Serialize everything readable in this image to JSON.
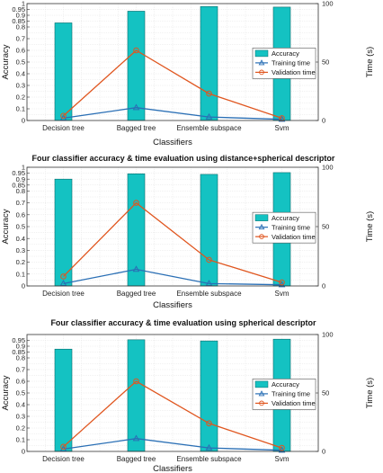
{
  "chart_data": [
    {
      "type": "bar",
      "title": "",
      "xlabel": "Classifiers",
      "ylabel": "Accuracy",
      "ylabel_right": "Time (s)",
      "categories": [
        "Decision tree",
        "Bagged tree",
        "Ensemble subspace",
        "Svm"
      ],
      "ylim": [
        0,
        1
      ],
      "ylim_right": [
        0,
        100
      ],
      "y_ticks": [
        "0",
        "0.1",
        "0.2",
        "0.3",
        "0.4",
        "0.5",
        "0.6",
        "0.7",
        "0.8",
        "0.85",
        "0.9",
        "0.95",
        "1"
      ],
      "y_ticks_right": [
        "0",
        "50",
        "100"
      ],
      "grid": true,
      "legend_position": "right",
      "series": [
        {
          "name": "Accuracy",
          "kind": "bar",
          "axis": "left",
          "color": "#14c2c2",
          "values": [
            0.835,
            0.935,
            0.975,
            0.97
          ]
        },
        {
          "name": "Training time",
          "kind": "line",
          "axis": "right",
          "color": "#2a6fb5",
          "marker": "triangle",
          "values": [
            2,
            11,
            3,
            1
          ]
        },
        {
          "name": "Validation time",
          "kind": "line",
          "axis": "right",
          "color": "#e0561f",
          "marker": "circle",
          "values": [
            4,
            60,
            23,
            2
          ]
        }
      ]
    },
    {
      "type": "bar",
      "title": "Four classifier accuracy & time evaluation using distance+spherical descriptor",
      "xlabel": "Classifiers",
      "ylabel": "Accuracy",
      "ylabel_right": "Time (s)",
      "categories": [
        "Decision tree",
        "Bagged tree",
        "Ensemble subspace",
        "Svm"
      ],
      "ylim": [
        0,
        1
      ],
      "ylim_right": [
        0,
        100
      ],
      "y_ticks": [
        "0",
        "0.1",
        "0.2",
        "0.3",
        "0.4",
        "0.5",
        "0.6",
        "0.7",
        "0.8",
        "0.85",
        "0.9",
        "0.95",
        "1"
      ],
      "y_ticks_right": [
        "0",
        "50",
        "100"
      ],
      "grid": true,
      "legend_position": "right",
      "series": [
        {
          "name": "Accuracy",
          "kind": "bar",
          "axis": "left",
          "color": "#14c2c2",
          "values": [
            0.9,
            0.945,
            0.94,
            0.955
          ]
        },
        {
          "name": "Training time",
          "kind": "line",
          "axis": "right",
          "color": "#2a6fb5",
          "marker": "triangle",
          "values": [
            2,
            14,
            2,
            1
          ]
        },
        {
          "name": "Validation time",
          "kind": "line",
          "axis": "right",
          "color": "#e0561f",
          "marker": "circle",
          "values": [
            8,
            70,
            22,
            3
          ]
        }
      ]
    },
    {
      "type": "bar",
      "title": "Four classifier accuracy & time evaluation using spherical descriptor",
      "xlabel": "Classifiers",
      "ylabel": "Accuracy",
      "ylabel_right": "Time (s)",
      "categories": [
        "Decision tree",
        "Bagged tree",
        "Ensemble subspace",
        "Svm"
      ],
      "ylim": [
        0,
        1
      ],
      "ylim_right": [
        0,
        100
      ],
      "y_ticks": [
        "0",
        "0.1",
        "0.2",
        "0.3",
        "0.4",
        "0.5",
        "0.6",
        "0.7",
        "0.8",
        "0.85",
        "0.9",
        "0.95"
      ],
      "y_ticks_right": [
        "0",
        "50",
        "100"
      ],
      "grid": true,
      "legend_position": "right",
      "series": [
        {
          "name": "Accuracy",
          "kind": "bar",
          "axis": "left",
          "color": "#14c2c2",
          "values": [
            0.875,
            0.955,
            0.945,
            0.96
          ]
        },
        {
          "name": "Training time",
          "kind": "line",
          "axis": "right",
          "color": "#2a6fb5",
          "marker": "triangle",
          "values": [
            2,
            11,
            3,
            1
          ]
        },
        {
          "name": "Validation time",
          "kind": "line",
          "axis": "right",
          "color": "#e0561f",
          "marker": "circle",
          "values": [
            4,
            60,
            24,
            3
          ]
        }
      ]
    }
  ]
}
